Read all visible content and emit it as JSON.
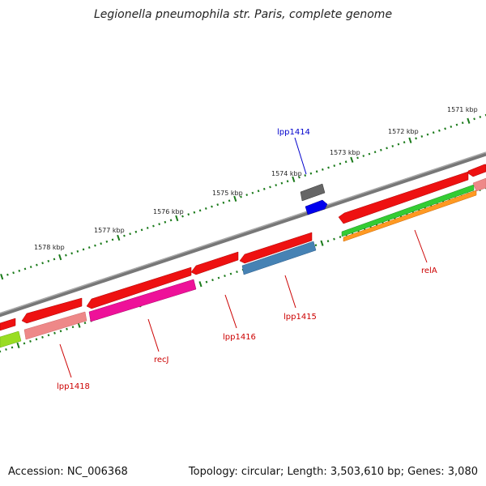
{
  "title": "Legionella pneumophila str. Paris, complete genome",
  "footer": {
    "accession": "Accession: NC_006368",
    "stats": "Topology: circular; Length: 3,503,610 bp; Genes: 3,080"
  },
  "colors": {
    "backbone": "#808080",
    "ticks": "#1a7a1a",
    "gene_label_default": "#cc0000",
    "gene_label_highlight": "#0000cc"
  },
  "kbp_labels": [
    "1571 kbp",
    "1572 kbp",
    "1573 kbp",
    "1574 kbp",
    "1575 kbp",
    "1576 kbp",
    "1577 kbp",
    "1578 kbp"
  ],
  "gene_labels": [
    {
      "name": "lpp1414",
      "color": "#0000cc"
    },
    {
      "name": "relA",
      "color": "#cc0000"
    },
    {
      "name": "lpp1415",
      "color": "#cc0000"
    },
    {
      "name": "lpp1416",
      "color": "#cc0000"
    },
    {
      "name": "recJ",
      "color": "#cc0000"
    },
    {
      "name": "lpp1418",
      "color": "#cc0000"
    }
  ],
  "feature_colors": {
    "cds": "#ee1111",
    "gene_pink": "#ee8888",
    "gene_magenta": "#ee1199",
    "gene_blue": "#4682b4",
    "gene_green": "#33cc33",
    "gene_orange": "#ff9922",
    "gene_lime": "#99dd22",
    "gene_gray": "#666666",
    "gene_bright_blue": "#0000ee"
  }
}
